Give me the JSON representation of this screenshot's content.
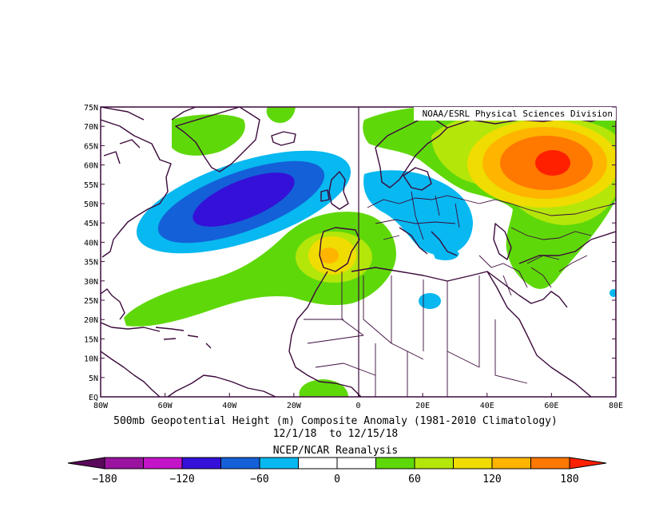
{
  "credit": "NOAA/ESRL Physical Sciences Division",
  "title_line1": "500mb Geopotential Height (m) Composite Anomaly (1981-2010 Climatology)",
  "title_line2": "12/1/18  to 12/15/18",
  "source": "NCEP/NCAR Reanalysis",
  "map": {
    "lon_range": [
      -80,
      80
    ],
    "lat_range": [
      0,
      75
    ],
    "lon_ticks": [
      "80W",
      "60W",
      "40W",
      "20W",
      "0",
      "20E",
      "40E",
      "60E",
      "80E"
    ],
    "lat_ticks": [
      "EQ",
      "5N",
      "10N",
      "15N",
      "20N",
      "25N",
      "30N",
      "35N",
      "40N",
      "45N",
      "50N",
      "55N",
      "60N",
      "65N",
      "70N",
      "75N"
    ],
    "frame_color": "#3b0a3b"
  },
  "colorbar": {
    "labels": [
      "-180",
      "-120",
      "-60",
      "0",
      "60",
      "120",
      "180"
    ],
    "colors": [
      "#5a0a5a",
      "#9a14a0",
      "#c414c8",
      "#3410d8",
      "#1460d8",
      "#08b8f0",
      "#ffffff",
      "#ffffff",
      "#5fd80a",
      "#b4e60a",
      "#f0dc00",
      "#ffb400",
      "#ff7800",
      "#ff2000"
    ]
  },
  "anomalies": [
    {
      "name": "north-atlantic-trough",
      "sign": "negative",
      "lon": -30,
      "lat": 52,
      "value": "<-120"
    },
    {
      "name": "iberia-ridge",
      "sign": "positive",
      "lon": -8,
      "lat": 37,
      "value": ">90"
    },
    {
      "name": "europe-trough",
      "sign": "negative",
      "lon": 20,
      "lat": 48,
      "value": "<-30"
    },
    {
      "name": "west-siberia-ridge",
      "sign": "positive",
      "lon": 60,
      "lat": 61,
      "value": ">150"
    }
  ]
}
